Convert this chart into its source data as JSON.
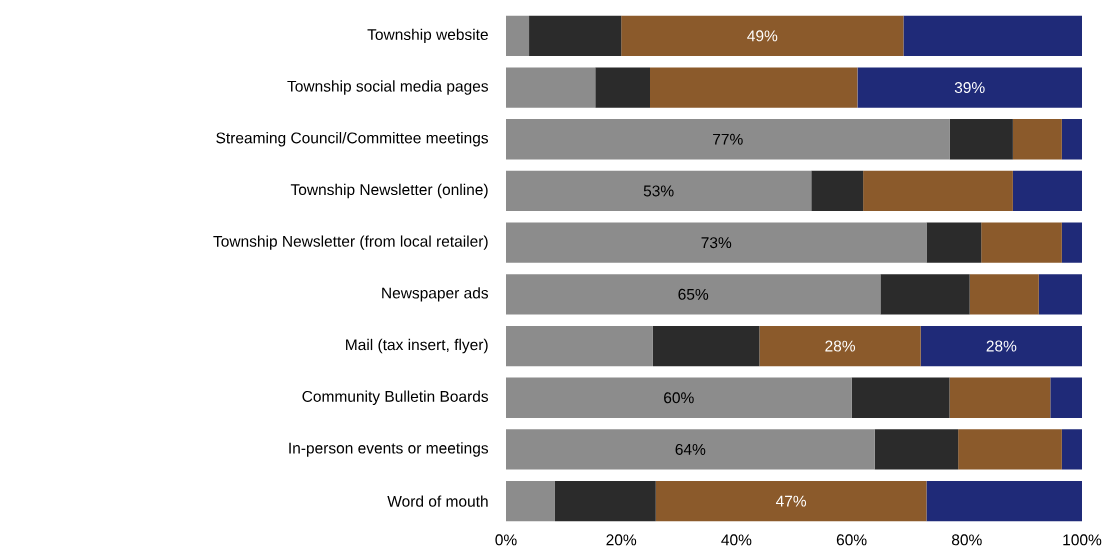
{
  "chart_data": {
    "type": "bar",
    "orientation": "horizontal",
    "stacked": true,
    "categories": [
      "Township website",
      "Township social media pages",
      "Streaming Council/Committee meetings",
      "Township Newsletter (online)",
      "Township Newsletter (from local retailer)",
      "Newspaper ads",
      "Mail (tax insert, flyer)",
      "Community Bulletin Boards",
      "In-person events or meetings",
      "Word of mouth"
    ],
    "series": [
      {
        "color": "#8c8c8c",
        "values": [
          4,
          15.5,
          77,
          53,
          73,
          65,
          25.5,
          60,
          64,
          8.5
        ],
        "value_labels": [
          null,
          null,
          "77%",
          "53%",
          "73%",
          "65%",
          null,
          "60%",
          "64%",
          null
        ]
      },
      {
        "color": "#2b2b2b",
        "values": [
          16,
          9.5,
          11,
          9,
          9.5,
          15.5,
          18.5,
          17,
          14.5,
          17.5
        ],
        "value_labels": [
          null,
          null,
          null,
          null,
          null,
          null,
          null,
          null,
          null,
          null
        ]
      },
      {
        "color": "#8b5a2b",
        "values": [
          49,
          36,
          8.5,
          26,
          14,
          12,
          28,
          17.5,
          18,
          47
        ],
        "value_labels": [
          "49%",
          null,
          null,
          null,
          null,
          null,
          "28%",
          null,
          null,
          "47%"
        ]
      },
      {
        "color": "#1f2a78",
        "values": [
          31,
          39,
          3.5,
          12,
          3.5,
          7.5,
          28,
          5.5,
          3.5,
          27
        ],
        "value_labels": [
          null,
          "39%",
          null,
          null,
          null,
          null,
          "28%",
          null,
          null,
          null
        ]
      }
    ],
    "xlim": [
      0,
      100
    ],
    "xticks": [
      {
        "value": 0,
        "label": "0%"
      },
      {
        "value": 20,
        "label": "20%"
      },
      {
        "value": 40,
        "label": "40%"
      },
      {
        "value": 60,
        "label": "60%"
      },
      {
        "value": 80,
        "label": "80%"
      },
      {
        "value": 100,
        "label": "100%"
      }
    ]
  }
}
